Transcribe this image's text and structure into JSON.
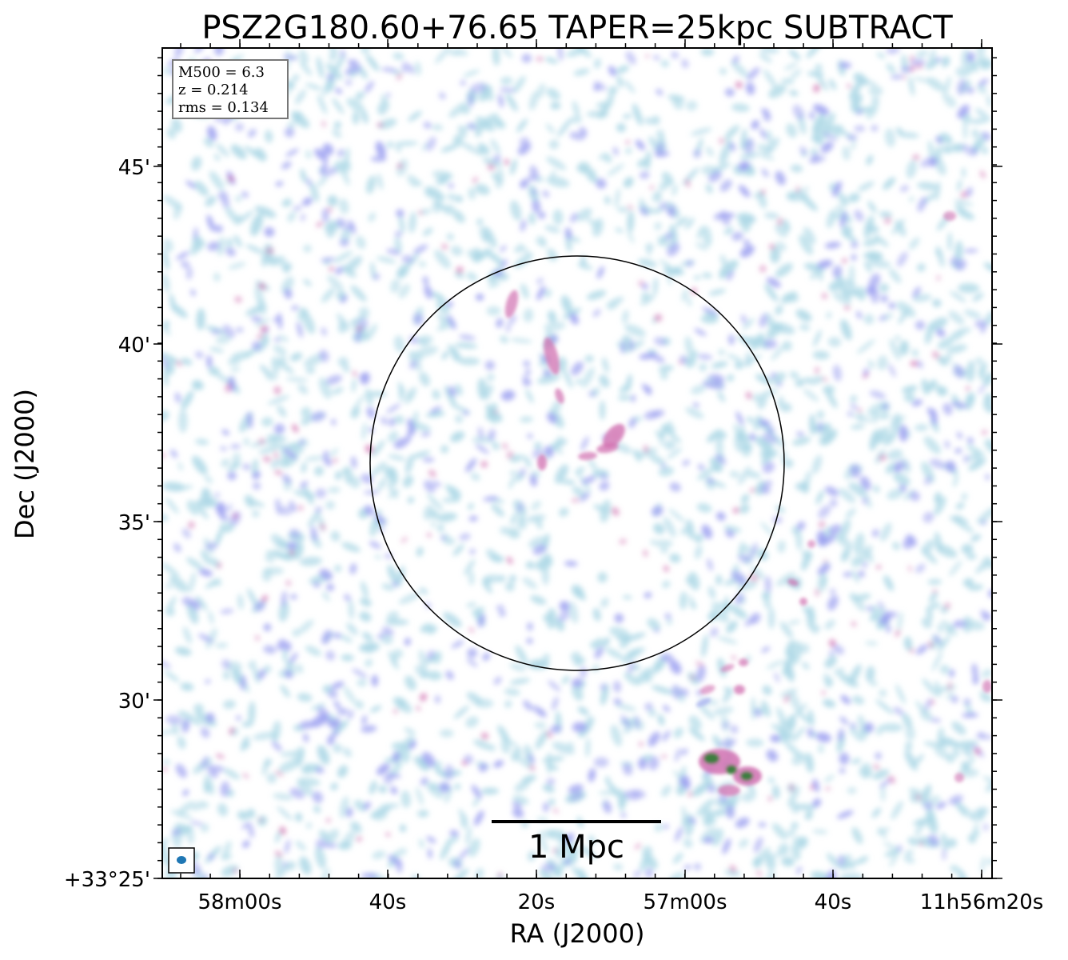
{
  "title": "PSZ2G180.60+76.65 TAPER=25kpc SUBTRACT",
  "axes": {
    "xlabel": "RA (J2000)",
    "ylabel": "Dec (J2000)",
    "x_ticks": [
      "58m00s",
      "40s",
      "20s",
      "57m00s",
      "40s",
      "11h56m20s"
    ],
    "y_ticks": [
      "+33°25'",
      "30'",
      "35'",
      "40'",
      "45'"
    ]
  },
  "info_box": {
    "lines": [
      "M500 = 6.3",
      "z = 0.214",
      "rms = 0.134"
    ]
  },
  "scale_bar": {
    "label": "1 Mpc"
  },
  "colors": {
    "low": "#add8e6",
    "mid": "#9b9ff0",
    "high": "#d070b0",
    "peak": "#2e7d32",
    "circle": "#000000",
    "beam": "#1f77b4"
  }
}
